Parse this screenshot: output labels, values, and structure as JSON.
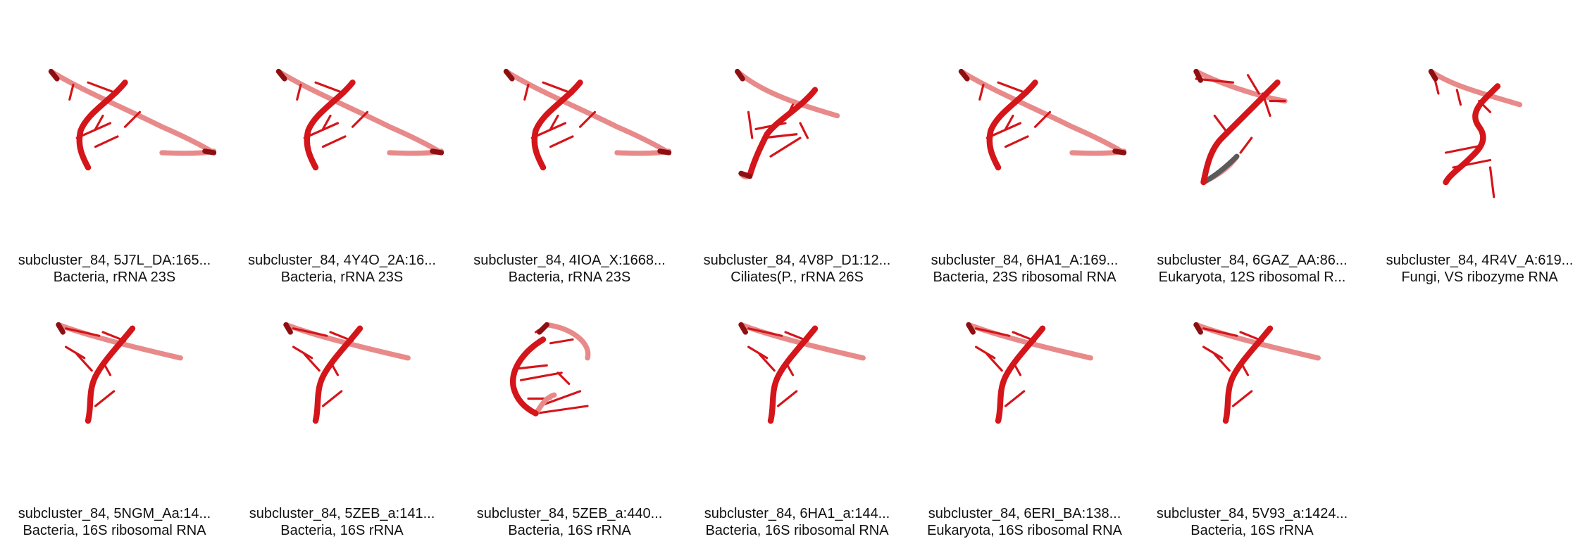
{
  "colors": {
    "strand_red": "#d4151a",
    "strand_pink": "#e88a8a",
    "strand_dark": "#8e0f12",
    "strand_grey": "#5a5a5a",
    "background": "#ffffff"
  },
  "cells": [
    {
      "title": "subcluster_84, 5J7L_DA:165...",
      "subtitle": "Bacteria, rRNA 23S",
      "shape": "A"
    },
    {
      "title": "subcluster_84, 4Y4O_2A:16...",
      "subtitle": "Bacteria, rRNA 23S",
      "shape": "A"
    },
    {
      "title": "subcluster_84, 4IOA_X:1668...",
      "subtitle": "Bacteria, rRNA 23S",
      "shape": "A"
    },
    {
      "title": "subcluster_84, 4V8P_D1:12...",
      "subtitle": "Ciliates(P., rRNA 26S",
      "shape": "B"
    },
    {
      "title": "subcluster_84, 6HA1_A:169...",
      "subtitle": "Bacteria, 23S ribosomal RNA",
      "shape": "A"
    },
    {
      "title": "subcluster_84, 6GAZ_AA:86...",
      "subtitle": "Eukaryota, 12S ribosomal R...",
      "shape": "C"
    },
    {
      "title": "subcluster_84, 4R4V_A:619...",
      "subtitle": "Fungi, VS ribozyme RNA",
      "shape": "D"
    },
    {
      "title": "subcluster_84, 5NGM_Aa:14...",
      "subtitle": "Bacteria, 16S ribosomal RNA",
      "shape": "E"
    },
    {
      "title": "subcluster_84, 5ZEB_a:141...",
      "subtitle": "Bacteria, 16S rRNA",
      "shape": "E"
    },
    {
      "title": "subcluster_84, 5ZEB_a:440...",
      "subtitle": "Bacteria, 16S rRNA",
      "shape": "F"
    },
    {
      "title": "subcluster_84, 6HA1_a:144...",
      "subtitle": "Bacteria, 16S ribosomal RNA",
      "shape": "E"
    },
    {
      "title": "subcluster_84, 6ERI_BA:138...",
      "subtitle": "Eukaryota, 16S ribosomal RNA",
      "shape": "E"
    },
    {
      "title": "subcluster_84, 5V93_a:1424...",
      "subtitle": "Bacteria, 16S rRNA",
      "shape": "E"
    }
  ]
}
